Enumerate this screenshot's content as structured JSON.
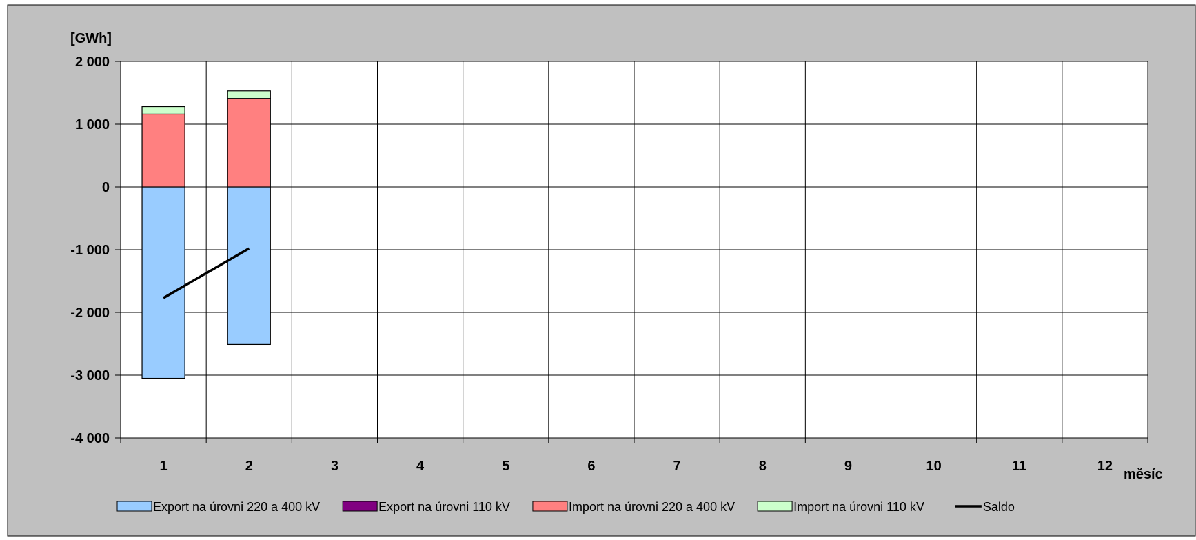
{
  "chart_data": {
    "type": "bar",
    "stacked": true,
    "unit_label": "[GWh]",
    "xlabel": "měsíc",
    "ylabel": "",
    "title": "",
    "categories": [
      "1",
      "2",
      "3",
      "4",
      "5",
      "6",
      "7",
      "8",
      "9",
      "10",
      "11",
      "12"
    ],
    "ylim": [
      -4000,
      2000
    ],
    "yticks": [
      -4000,
      -3000,
      -2000,
      -1000,
      0,
      1000,
      2000
    ],
    "ytick_labels": [
      "-4 000",
      "-3 000",
      "-2 000",
      "-1 000",
      "0",
      "1 000",
      "2 000"
    ],
    "reference_line": -1500,
    "grid": true,
    "legend_position": "bottom",
    "series": [
      {
        "name": "Export na úrovni 220 a 400 kV",
        "kind": "bar",
        "color": "#99ccff",
        "values": [
          -3050,
          -2510,
          null,
          null,
          null,
          null,
          null,
          null,
          null,
          null,
          null,
          null
        ]
      },
      {
        "name": "Export na úrovni 110 kV",
        "kind": "bar",
        "color": "#800080",
        "values": [
          0,
          0,
          null,
          null,
          null,
          null,
          null,
          null,
          null,
          null,
          null,
          null
        ]
      },
      {
        "name": "Import na úrovni 220 a 400 kV",
        "kind": "bar",
        "color": "#ff8080",
        "values": [
          1160,
          1410,
          null,
          null,
          null,
          null,
          null,
          null,
          null,
          null,
          null,
          null
        ]
      },
      {
        "name": "Import na úrovni 110 kV",
        "kind": "bar",
        "color": "#ccffcc",
        "values": [
          120,
          120,
          null,
          null,
          null,
          null,
          null,
          null,
          null,
          null,
          null,
          null
        ]
      },
      {
        "name": "Saldo",
        "kind": "line",
        "color": "#000000",
        "values": [
          -1770,
          -980,
          null,
          null,
          null,
          null,
          null,
          null,
          null,
          null,
          null,
          null
        ]
      }
    ]
  }
}
